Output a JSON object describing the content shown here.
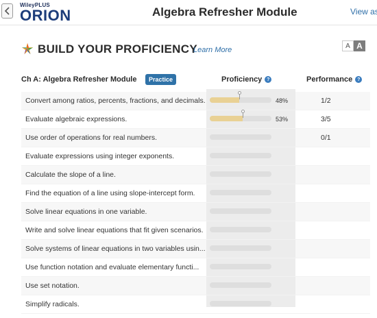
{
  "header": {
    "brand_small": "WileyPLUS",
    "brand_big": "ORION",
    "title": "Algebra Refresher Module",
    "view_as": "View as"
  },
  "section": {
    "title": "BUILD YOUR PROFICIENCY",
    "learn_more": "Learn More",
    "font_small": "A",
    "font_large": "A"
  },
  "table": {
    "chapter": "Ch A: Algebra Refresher Module",
    "practice": "Practice",
    "proficiency_header": "Proficiency",
    "performance_header": "Performance",
    "help_glyph": "?",
    "rows": [
      {
        "objective": "Convert among ratios, percents, fractions, and decimals.",
        "proficiency": 0.48,
        "pct": "48%",
        "performance": "1/2"
      },
      {
        "objective": "Evaluate algebraic expressions.",
        "proficiency": 0.53,
        "pct": "53%",
        "performance": "3/5"
      },
      {
        "objective": "Use order of operations for real numbers.",
        "proficiency": 0,
        "pct": "",
        "performance": "0/1"
      },
      {
        "objective": "Evaluate expressions using integer exponents.",
        "proficiency": 0,
        "pct": "",
        "performance": ""
      },
      {
        "objective": "Calculate the slope of a line.",
        "proficiency": 0,
        "pct": "",
        "performance": ""
      },
      {
        "objective": "Find the equation of a line using slope-intercept form.",
        "proficiency": 0,
        "pct": "",
        "performance": ""
      },
      {
        "objective": "Solve linear equations in one variable.",
        "proficiency": 0,
        "pct": "",
        "performance": ""
      },
      {
        "objective": "Write and solve linear equations that fit given scenarios.",
        "proficiency": 0,
        "pct": "",
        "performance": ""
      },
      {
        "objective": "Solve systems of linear equations in two variables usin...",
        "proficiency": 0,
        "pct": "",
        "performance": ""
      },
      {
        "objective": "Use function notation and evaluate elementary functi...",
        "proficiency": 0,
        "pct": "",
        "performance": ""
      },
      {
        "objective": "Use set notation.",
        "proficiency": 0,
        "pct": "",
        "performance": ""
      },
      {
        "objective": "Simplify radicals.",
        "proficiency": 0,
        "pct": "",
        "performance": ""
      }
    ]
  },
  "colors": {
    "accent": "#2f72a8",
    "brand": "#1d3d7a",
    "bar_fill": "#e9d194"
  }
}
